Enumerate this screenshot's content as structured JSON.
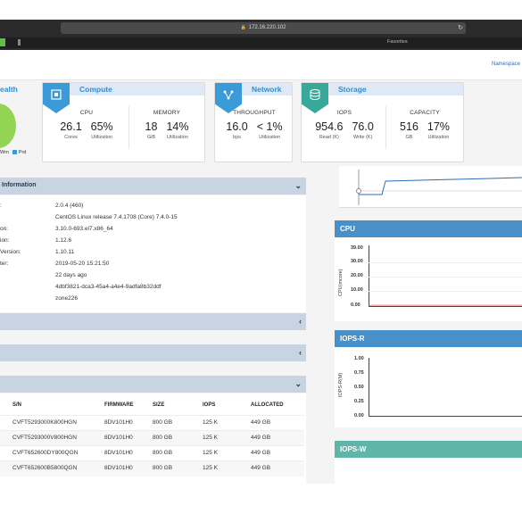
{
  "browser": {
    "url": "172.16.220.102",
    "favorites_label": "Favorites"
  },
  "header": {
    "namespace_label": "Namespace"
  },
  "health": {
    "title": "ealth",
    "legend": [
      "Wm",
      "Prd"
    ],
    "colors": {
      "donut": "#94d454",
      "legend": "#3b9bd9"
    }
  },
  "cards": {
    "compute": {
      "title": "Compute",
      "cpu": {
        "label": "CPU",
        "cores_value": "26.1",
        "cores_unit": "Cores",
        "util_value": "65%",
        "util_unit": "Utilization"
      },
      "memory": {
        "label": "MEMORY",
        "gib_value": "18",
        "gib_unit": "GiB",
        "util_value": "14%",
        "util_unit": "Utilization"
      }
    },
    "network": {
      "title": "Network",
      "throughput": {
        "label": "THROUGHPUT",
        "bps_value": "16.0",
        "bps_unit": "bps",
        "util_value": "< 1%",
        "util_unit": "Utilization"
      }
    },
    "storage": {
      "title": "Storage",
      "iops": {
        "label": "IOPS",
        "read_value": "954.6",
        "read_unit": "Read (K)",
        "write_value": "76.0",
        "write_unit": "Write (K)"
      },
      "capacity": {
        "label": "CAPACITY",
        "gb_value": "516",
        "gb_unit": "GB",
        "util_value": "17%",
        "util_unit": "Utilization"
      }
    }
  },
  "info_panel": {
    "title": "Information",
    "rows": [
      {
        "key": ":",
        "value": "2.0.4 (460)"
      },
      {
        "key": "",
        "value": "CentOS Linux release 7.4.1708 (Core) 7.4.0-15"
      },
      {
        "key": "on:",
        "value": "3.10.0-693.el7.x86_64"
      },
      {
        "key": "ion:",
        "value": "1.12.6"
      },
      {
        "key": "Version:",
        "value": "1.10.11"
      },
      {
        "key": "ter:",
        "value": "2019-05-20 15:21:50"
      },
      {
        "key": "",
        "value": "22 days ago"
      },
      {
        "key": "",
        "value": "4dbf3821-dca3-45a4-a4e4-9adfa8b32ddf"
      },
      {
        "key": "",
        "value": "zone226"
      }
    ]
  },
  "disk_table": {
    "headers": [
      "S/N",
      "FIRMWARE",
      "SIZE",
      "IOPS",
      "ALLOCATED"
    ],
    "rows": [
      [
        "CVFT5293000K800HGN",
        "8DV101H0",
        "800 GB",
        "125 K",
        "449 GB"
      ],
      [
        "CVFT5293000V800HGN",
        "8DV101H0",
        "800 GB",
        "125 K",
        "449 GB"
      ],
      [
        "CVFT652600DY800QGN",
        "8DV101H0",
        "800 GB",
        "125 K",
        "449 GB"
      ],
      [
        "CVFT652600B5800QGN",
        "8DV101H0",
        "800 GB",
        "125 K",
        "449 GB"
      ]
    ]
  },
  "charts": {
    "cpu": {
      "title": "CPU",
      "ylabel": "CPU(mcore)",
      "ticks": [
        "39.00",
        "30.00",
        "20.00",
        "10.00",
        "0.00"
      ]
    },
    "iops_r": {
      "title": "IOPS-R",
      "ylabel": "IOPS-R(M)",
      "ticks": [
        "1.00",
        "0.75",
        "0.50",
        "0.25",
        "0.00"
      ]
    },
    "iops_w": {
      "title": "IOPS-W"
    }
  },
  "chart_data": {
    "type": "line",
    "title": "CPU",
    "ylabel": "CPU(mcore)",
    "ylim": [
      0,
      39
    ],
    "series": [
      {
        "values": [
          0.5,
          0.5,
          0.5,
          0.5,
          0.5,
          0.5,
          0.5,
          0.5
        ]
      }
    ]
  },
  "colors": {
    "accent_blue": "#2d8fd6",
    "chart_header": "#4a90c8",
    "chart_header_teal": "#5fb6a8",
    "panel_header": "#c9d4e2"
  }
}
